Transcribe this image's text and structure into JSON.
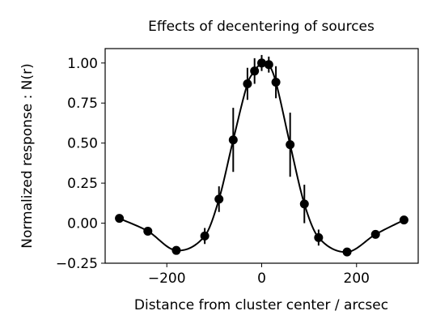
{
  "chart_data": {
    "type": "line",
    "title": "Effects of decentering of sources",
    "xlabel": "Distance from cluster center / arcsec",
    "ylabel": "Normalized response : N(r)",
    "xlim": [
      -330,
      330
    ],
    "ylim": [
      -0.25,
      1.09
    ],
    "x_ticks": [
      -200,
      0,
      200
    ],
    "x_tick_labels": [
      "−200",
      "0",
      "200"
    ],
    "y_ticks": [
      -0.25,
      0.0,
      0.25,
      0.5,
      0.75,
      1.0
    ],
    "y_tick_labels": [
      "−0.25",
      "0.00",
      "0.25",
      "0.50",
      "0.75",
      "1.00"
    ],
    "grid": false,
    "legend": "none",
    "colors": {
      "line": "#000000",
      "marker": "#000000"
    },
    "points": [
      {
        "x": -300,
        "y": 0.03,
        "err": 0.0
      },
      {
        "x": -240,
        "y": -0.05,
        "err": 0.0
      },
      {
        "x": -180,
        "y": -0.17,
        "err": 0.0
      },
      {
        "x": -120,
        "y": -0.08,
        "err": 0.05
      },
      {
        "x": -90,
        "y": 0.15,
        "err": 0.08
      },
      {
        "x": -60,
        "y": 0.52,
        "err": 0.2
      },
      {
        "x": -30,
        "y": 0.87,
        "err": 0.1
      },
      {
        "x": -15,
        "y": 0.95,
        "err": 0.08
      },
      {
        "x": 0,
        "y": 1.0,
        "err": 0.05
      },
      {
        "x": 15,
        "y": 0.99,
        "err": 0.05
      },
      {
        "x": 30,
        "y": 0.88,
        "err": 0.1
      },
      {
        "x": 60,
        "y": 0.49,
        "err": 0.2
      },
      {
        "x": 90,
        "y": 0.12,
        "err": 0.12
      },
      {
        "x": 120,
        "y": -0.09,
        "err": 0.05
      },
      {
        "x": 180,
        "y": -0.18,
        "err": 0.0
      },
      {
        "x": 240,
        "y": -0.07,
        "err": 0.0
      },
      {
        "x": 300,
        "y": 0.02,
        "err": 0.0
      }
    ]
  }
}
